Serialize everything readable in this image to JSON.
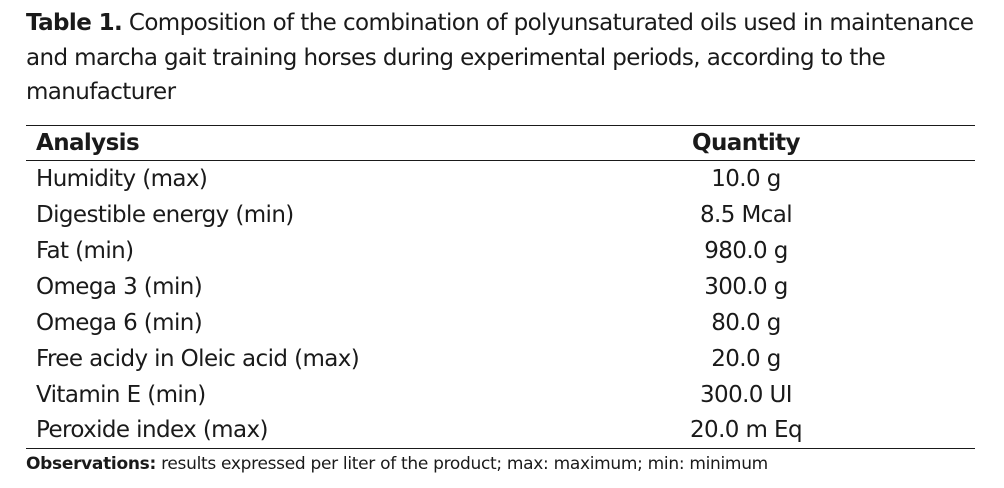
{
  "caption": {
    "label": "Table 1.",
    "text": "Composition of the combination of polyunsaturated oils used in maintenance and marcha gait training horses during experimental periods, according to the manufacturer"
  },
  "table": {
    "headers": [
      "Analysis",
      "Quantity"
    ],
    "rows": [
      {
        "analysis": "Humidity (max)",
        "quantity": "10.0 g"
      },
      {
        "analysis": "Digestible energy (min)",
        "quantity": "8.5 Mcal"
      },
      {
        "analysis": "Fat (min)",
        "quantity": "980.0 g"
      },
      {
        "analysis": "Omega 3 (min)",
        "quantity": "300.0 g"
      },
      {
        "analysis": "Omega 6 (min)",
        "quantity": "80.0 g"
      },
      {
        "analysis": "Free acidy in Oleic acid (max)",
        "quantity": "20.0 g"
      },
      {
        "analysis": "Vitamin E (min)",
        "quantity": "300.0 UI"
      },
      {
        "analysis": "Peroxide index (max)",
        "quantity": "20.0 m Eq"
      }
    ]
  },
  "note": {
    "label": "Observations:",
    "text": "results expressed per liter of the product; max: maximum; min: minimum"
  }
}
